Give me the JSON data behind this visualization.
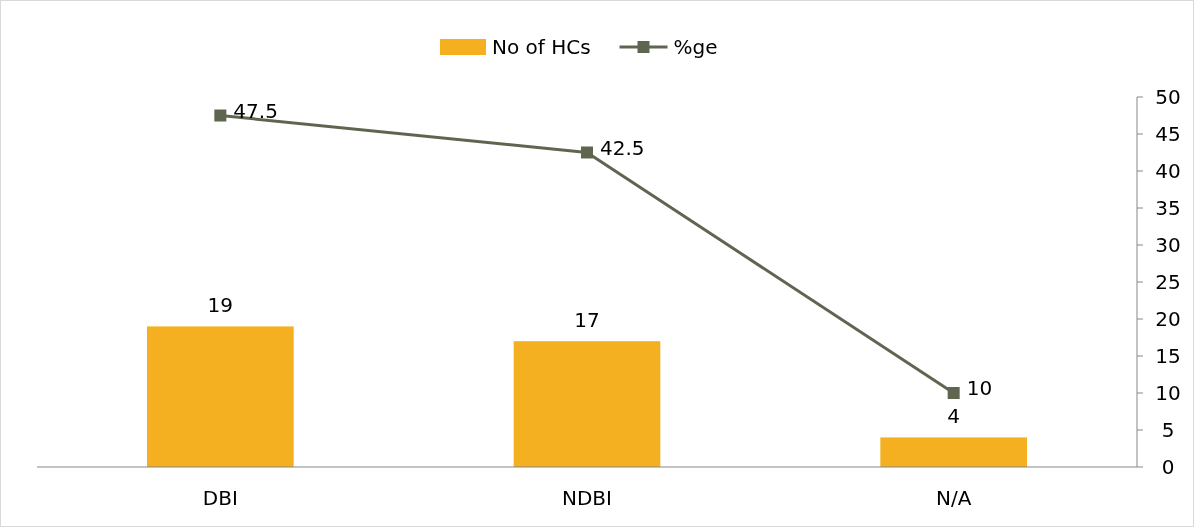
{
  "chart_data": {
    "type": "bar",
    "categories": [
      "DBI",
      "NDBI",
      "N/A"
    ],
    "series": [
      {
        "name": "No of HCs",
        "color": "#f5b021",
        "values": [
          19,
          17,
          4
        ]
      },
      {
        "name": "%ge",
        "type": "line",
        "color": "#5f6650",
        "values": [
          47.5,
          42.5,
          10
        ]
      }
    ],
    "ylim": [
      0,
      50
    ],
    "yticks": [
      0,
      5,
      10,
      15,
      20,
      25,
      30,
      35,
      40,
      45,
      50
    ],
    "data_labels": true,
    "legend": "top",
    "marker": "square",
    "grid": false
  }
}
